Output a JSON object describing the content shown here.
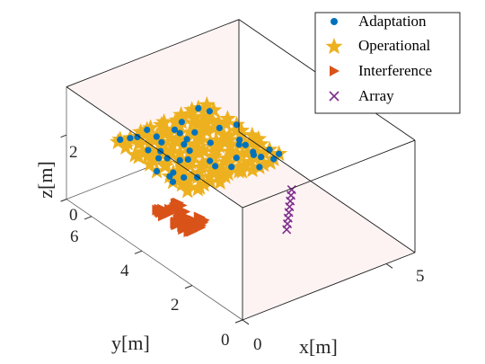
{
  "chart_data": {
    "type": "scatter3d",
    "xlabel": "x[m]",
    "ylabel": "y[m]",
    "zlabel": "z[m]",
    "xlim": [
      0,
      6
    ],
    "ylim": [
      0,
      7
    ],
    "zlim": [
      0,
      3.5
    ],
    "x_ticks": [
      "0",
      "5"
    ],
    "y_ticks": [
      "0",
      "2",
      "4",
      "6"
    ],
    "z_ticks": [
      "0",
      "2"
    ],
    "legend_position": "top-right",
    "colors": {
      "adaptation": "#0072BD",
      "operational": "#EDB120",
      "interference": "#D95319",
      "array": "#7E2F8E",
      "box_fill": "#fdf2f2",
      "box_edge": "#1a1a1a"
    },
    "series": [
      {
        "name": "Adaptation",
        "marker": "circle",
        "region": {
          "x": [
            0.8,
            4.2
          ],
          "y": [
            3.0,
            6.2
          ],
          "z": 2.0
        }
      },
      {
        "name": "Operational",
        "marker": "star",
        "region": {
          "x": [
            0.8,
            4.2
          ],
          "y": [
            3.0,
            6.2
          ],
          "z": 2.0
        }
      },
      {
        "name": "Interference",
        "marker": "triangle-right",
        "region": {
          "x": [
            1.6,
            2.4
          ],
          "y": [
            4.0,
            5.3
          ],
          "z": 0.0
        }
      },
      {
        "name": "Array",
        "marker": "x",
        "points": [
          [
            3.9,
            2.7,
            0.0
          ],
          [
            4.1,
            2.9,
            0.0
          ],
          [
            4.3,
            3.1,
            0.0
          ],
          [
            4.5,
            3.3,
            0.0
          ],
          [
            4.7,
            3.5,
            0.0
          ],
          [
            4.9,
            3.7,
            0.0
          ],
          [
            5.1,
            3.9,
            0.0
          ],
          [
            5.3,
            4.1,
            0.0
          ]
        ]
      }
    ]
  }
}
